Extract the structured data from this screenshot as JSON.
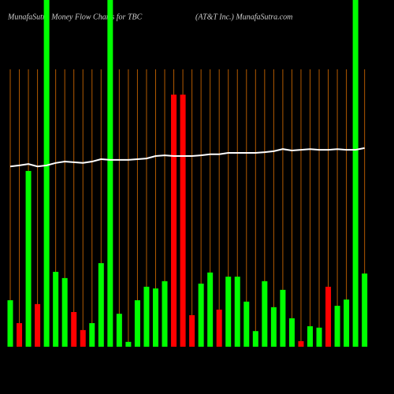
{
  "chart_data": {
    "type": "bar",
    "title": "MunafaSutra  Money Flow  Charts for TBC",
    "subtitle": "(AT&T Inc.) MunafaSutra.com",
    "categories": [
      null,
      null,
      null,
      null,
      null,
      null,
      null,
      null,
      null,
      null,
      null,
      null,
      null,
      null,
      null,
      null,
      null,
      null,
      null,
      null,
      null,
      null,
      null,
      null,
      null,
      null,
      null,
      null,
      null,
      null,
      null,
      null,
      null,
      null,
      null,
      null,
      null,
      null,
      null,
      null
    ],
    "values": [
      13.4,
      6.8,
      50.7,
      12.3,
      100,
      21.6,
      19.8,
      10,
      4.8,
      6.8,
      24.1,
      100,
      9.5,
      1.4,
      13.4,
      17.3,
      16.8,
      18.9,
      72.7,
      72.7,
      9.1,
      18.2,
      21.4,
      10.7,
      20.2,
      20.2,
      13,
      4.5,
      18.9,
      11.4,
      16.4,
      8.2,
      1.6,
      5.9,
      5.5,
      17.3,
      11.8,
      13.6,
      100,
      21.1
    ],
    "colors": [
      "#00ff00",
      "#ff0000",
      "#00ff00",
      "#ff0000",
      "#00ff00",
      "#00ff00",
      "#00ff00",
      "#ff0000",
      "#ff0000",
      "#00ff00",
      "#00ff00",
      "#00ff00",
      "#00ff00",
      "#00ff00",
      "#00ff00",
      "#00ff00",
      "#00ff00",
      "#00ff00",
      "#ff0000",
      "#ff0000",
      "#ff0000",
      "#00ff00",
      "#00ff00",
      "#ff0000",
      "#00ff00",
      "#00ff00",
      "#00ff00",
      "#00ff00",
      "#00ff00",
      "#00ff00",
      "#00ff00",
      "#00ff00",
      "#ff0000",
      "#00ff00",
      "#00ff00",
      "#ff0000",
      "#00ff00",
      "#00ff00",
      "#00ff00",
      "#00ff00"
    ],
    "line": {
      "color": "#ffffff",
      "values": [
        52.0,
        52.3,
        52.7,
        52.0,
        52.3,
        53.0,
        53.4,
        53.2,
        53.0,
        53.4,
        54.1,
        53.9,
        53.9,
        53.9,
        54.1,
        54.3,
        55.0,
        55.2,
        55.0,
        55.0,
        55.0,
        55.2,
        55.5,
        55.5,
        55.9,
        55.9,
        55.9,
        55.9,
        56.1,
        56.4,
        57.0,
        56.6,
        56.8,
        57.0,
        56.8,
        56.8,
        57.0,
        56.8,
        56.8,
        57.3
      ]
    },
    "grid_color": "#b35a00",
    "ylim": [
      0,
      100
    ]
  }
}
